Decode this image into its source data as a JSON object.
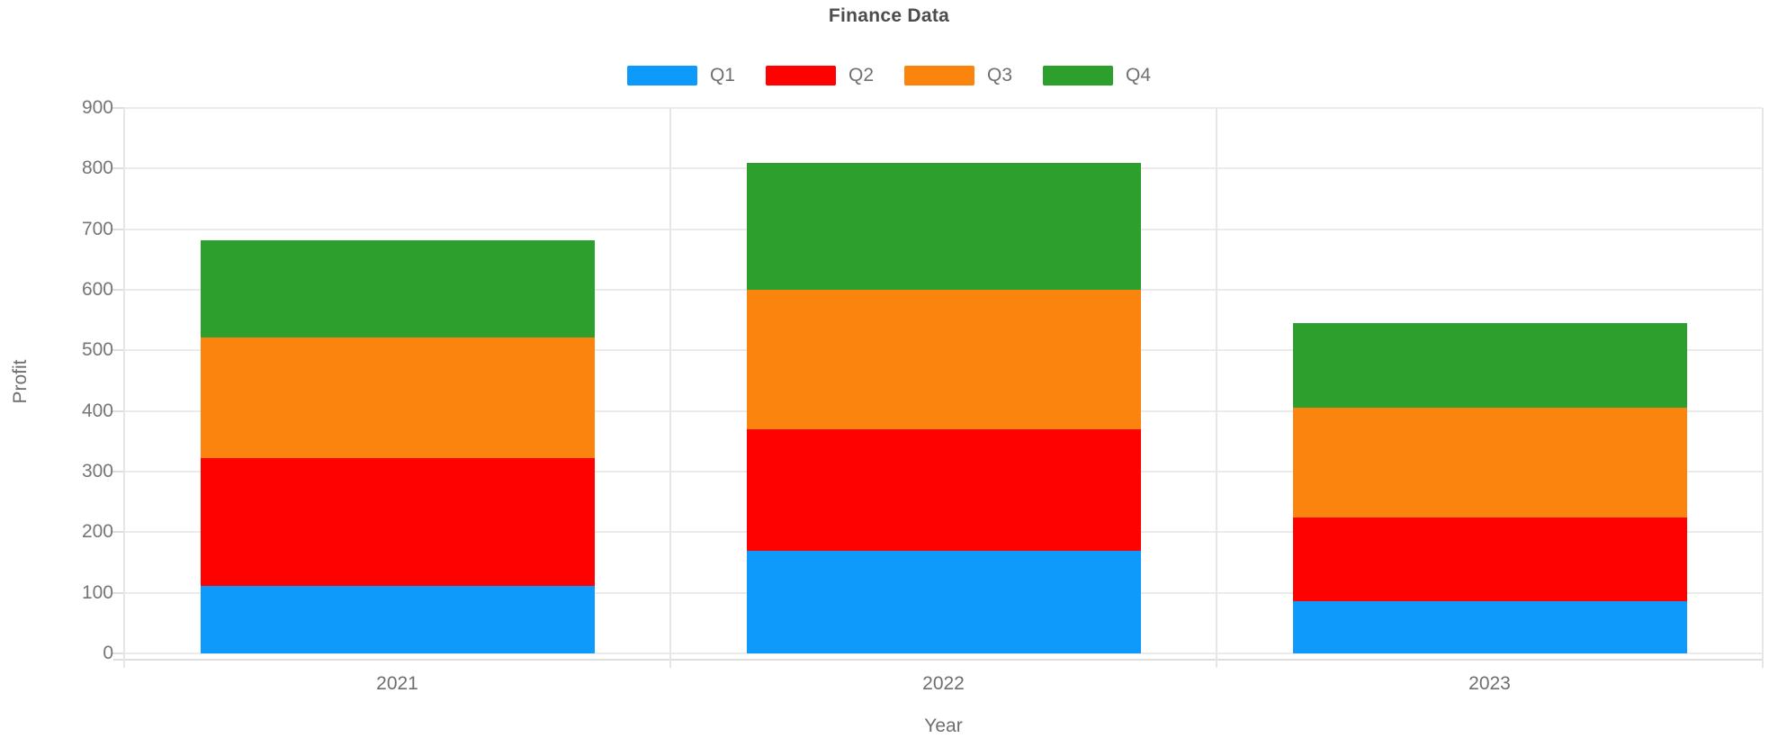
{
  "chart_data": {
    "type": "bar",
    "stacked": true,
    "title": "Finance Data",
    "xlabel": "Year",
    "ylabel": "Profit",
    "categories": [
      "2021",
      "2022",
      "2023"
    ],
    "series": [
      {
        "name": "Q1",
        "color": "#0d9afb",
        "values": [
          112,
          170,
          86
        ]
      },
      {
        "name": "Q2",
        "color": "#fe0202",
        "values": [
          211,
          200,
          139
        ]
      },
      {
        "name": "Q3",
        "color": "#fb840f",
        "values": [
          199,
          230,
          181
        ]
      },
      {
        "name": "Q4",
        "color": "#2d9f2d",
        "values": [
          160,
          210,
          139
        ]
      }
    ],
    "totals": [
      682,
      810,
      545
    ],
    "ylim": [
      0,
      900
    ],
    "ytick_step": 100,
    "ytick_labels": [
      "0",
      "100",
      "200",
      "300",
      "400",
      "500",
      "600",
      "700",
      "800",
      "900"
    ],
    "grid": true,
    "legend_position": "top"
  },
  "colors": {
    "grid": "#ebebeb",
    "axis": "#dedede",
    "tick_text": "#757575",
    "title_text": "#4c4c4c",
    "legend_text": "#707070"
  }
}
